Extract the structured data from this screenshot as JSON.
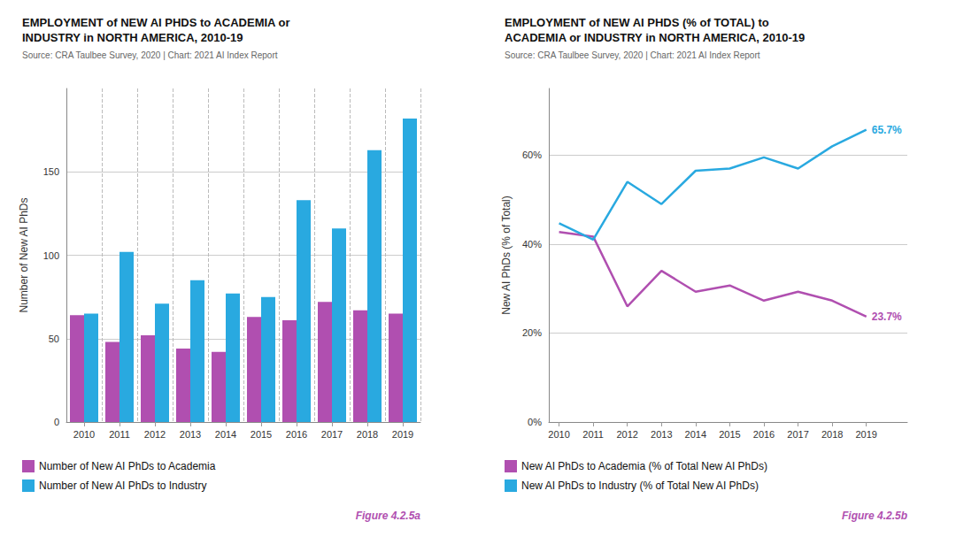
{
  "chart_data": [
    {
      "type": "bar",
      "title": "EMPLOYMENT of NEW AI PHDS to ACADEMIA or\nINDUSTRY in NORTH AMERICA, 2010-19",
      "subtitle": "Source: CRA Taulbee Survey, 2020 | Chart: 2021 AI Index Report",
      "ylabel": "Number of New AI PhDs",
      "categories": [
        "2010",
        "2011",
        "2012",
        "2013",
        "2014",
        "2015",
        "2016",
        "2017",
        "2018",
        "2019"
      ],
      "series": [
        {
          "name": "Number of New AI PhDs to Academia",
          "color": "#b04fb0",
          "values": [
            64,
            48,
            52,
            44,
            42,
            63,
            61,
            72,
            67,
            65
          ]
        },
        {
          "name": "Number of New AI PhDs to Industry",
          "color": "#29a9e0",
          "values": [
            65,
            102,
            71,
            85,
            77,
            75,
            133,
            116,
            163,
            182
          ]
        }
      ],
      "ylim": [
        0,
        200
      ],
      "yticks": [
        0,
        50,
        100,
        150
      ],
      "grid": true,
      "legend": "bottom",
      "annotations": [
        {
          "text": "Figure 4.2.5a"
        }
      ]
    },
    {
      "type": "line",
      "title": "EMPLOYMENT of NEW AI PHDS (% of TOTAL) to\nACADEMIA or INDUSTRY in NORTH AMERICA, 2010-19",
      "subtitle": "Source: CRA Taulbee Survey, 2020 | Chart: 2021 AI Index Report",
      "ylabel": "New AI PhDs (% of Total)",
      "x": [
        2010,
        2011,
        2012,
        2013,
        2014,
        2015,
        2016,
        2017,
        2018,
        2019
      ],
      "series": [
        {
          "name": "New AI PhDs to Academia (% of Total New AI PhDs)",
          "color": "#b04fb0",
          "values": [
            42.7,
            41.7,
            26.0,
            34.0,
            29.3,
            30.7,
            27.3,
            29.3,
            27.3,
            23.7
          ]
        },
        {
          "name": "New AI PhDs to Industry (% of Total New AI PhDs)",
          "color": "#29a9e0",
          "values": [
            44.7,
            41.0,
            54.0,
            49.0,
            56.5,
            57.0,
            59.5,
            57.0,
            62.0,
            65.7
          ]
        }
      ],
      "xlim": [
        2009.7,
        2020.2
      ],
      "xticks": [
        2010,
        2011,
        2012,
        2013,
        2014,
        2015,
        2016,
        2017,
        2018,
        2019
      ],
      "ylim": [
        0,
        75
      ],
      "yticks": [
        {
          "value": 0,
          "label": "0%"
        },
        {
          "value": 20,
          "label": "20%"
        },
        {
          "value": 40,
          "label": "40%"
        },
        {
          "value": 60,
          "label": "60%"
        }
      ],
      "grid": true,
      "legend": "bottom",
      "annotations": [
        {
          "text": "65.7%",
          "x": 2019,
          "y": 65.7,
          "color": "#29a9e0"
        },
        {
          "text": "23.7%",
          "x": 2019,
          "y": 23.7,
          "color": "#b04fb0"
        },
        {
          "text": "Figure 4.2.5b"
        }
      ]
    }
  ]
}
